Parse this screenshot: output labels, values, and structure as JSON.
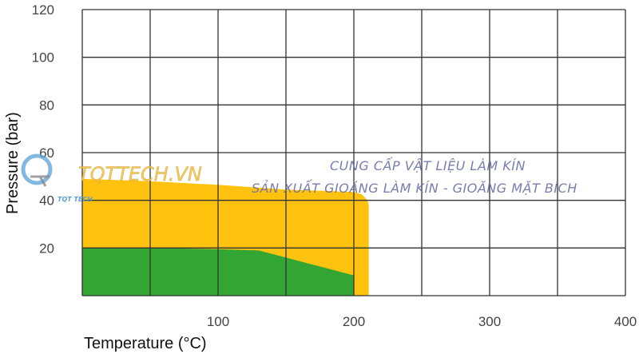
{
  "chart_data": {
    "type": "area",
    "title": "",
    "xlabel": "Temperature (°C)",
    "ylabel": "Pressure (bar)",
    "xlim": [
      0,
      400
    ],
    "ylim": [
      0,
      120
    ],
    "x_ticks": [
      100,
      200,
      300,
      400
    ],
    "y_ticks": [
      20,
      40,
      60,
      80,
      100,
      120
    ],
    "x_grid_step": 50,
    "y_grid_step": 20,
    "grid": true,
    "series": [
      {
        "color": "#FFC20E",
        "points": [
          [
            0,
            49
          ],
          [
            50,
            48
          ],
          [
            100,
            46.5
          ],
          [
            150,
            44.5
          ],
          [
            200,
            43.5
          ],
          [
            206,
            42.5
          ],
          [
            210,
            40
          ],
          [
            211,
            38
          ],
          [
            211,
            0
          ]
        ]
      },
      {
        "color": "#33A532",
        "points": [
          [
            0,
            20
          ],
          [
            50,
            20
          ],
          [
            100,
            19.5
          ],
          [
            130,
            19
          ],
          [
            200,
            8.5
          ],
          [
            200,
            0
          ]
        ]
      }
    ]
  },
  "watermark": {
    "logo_text": "TQT TECH",
    "site": "TQTTECH.VN",
    "line1": "CUNG CẤP VẬT LIỆU LÀM KÍN",
    "line2": "SẢN XUẤT GIOĂNG LÀM KÍN - GIOĂNG MẶT BÍCH"
  }
}
